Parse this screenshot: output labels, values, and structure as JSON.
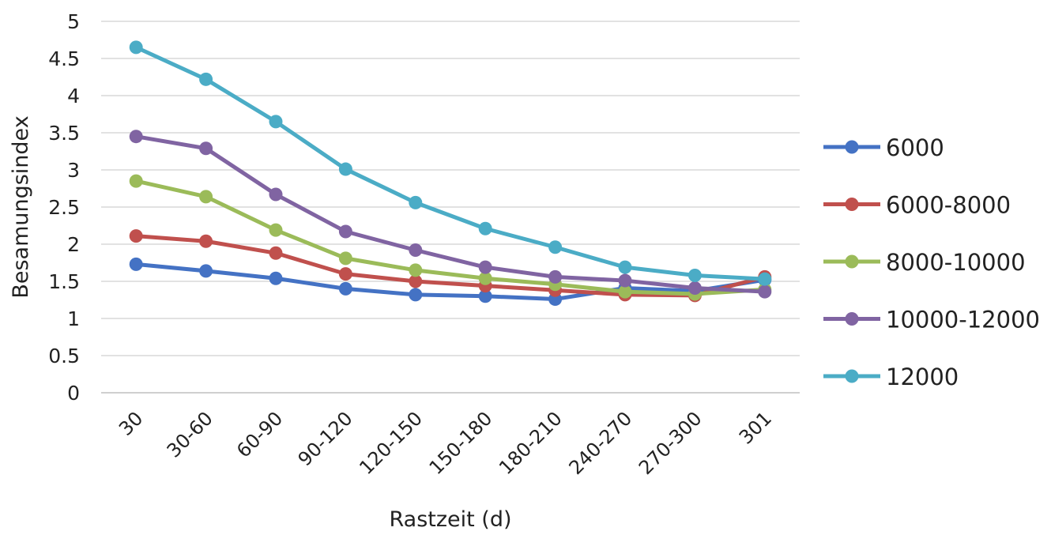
{
  "chart_data": {
    "type": "line",
    "xlabel": "Rastzeit (d)",
    "ylabel": "Besamungsindex",
    "ylim": [
      0,
      5
    ],
    "yticks": [
      "0",
      "0.5",
      "1",
      "1.5",
      "2",
      "2.5",
      "3",
      "3.5",
      "4",
      "4.5",
      "5"
    ],
    "grid": true,
    "legend_position": "right",
    "categories": [
      "30",
      "30-60",
      "60-90",
      "90-120",
      "120-150",
      "150-180",
      "180-210",
      "240-270",
      "270-300",
      "301"
    ],
    "series": [
      {
        "name": "6000",
        "color": "#4472c4",
        "values": [
          1.73,
          1.64,
          1.54,
          1.4,
          1.32,
          1.3,
          1.26,
          1.41,
          1.37,
          1.52
        ]
      },
      {
        "name": "6000-8000",
        "color": "#c0504d",
        "values": [
          2.11,
          2.04,
          1.88,
          1.6,
          1.5,
          1.44,
          1.38,
          1.32,
          1.31,
          1.56
        ]
      },
      {
        "name": "8000-10000",
        "color": "#9bbb59",
        "values": [
          2.85,
          2.64,
          2.19,
          1.81,
          1.65,
          1.54,
          1.46,
          1.36,
          1.33,
          1.39
        ]
      },
      {
        "name": "10000-12000",
        "color": "#8064a2",
        "values": [
          3.45,
          3.29,
          2.67,
          2.17,
          1.92,
          1.69,
          1.56,
          1.51,
          1.41,
          1.36
        ]
      },
      {
        "name": "12000",
        "color": "#4bacc6",
        "values": [
          4.65,
          4.22,
          3.65,
          3.01,
          2.56,
          2.21,
          1.96,
          1.69,
          1.58,
          1.53
        ]
      }
    ]
  }
}
